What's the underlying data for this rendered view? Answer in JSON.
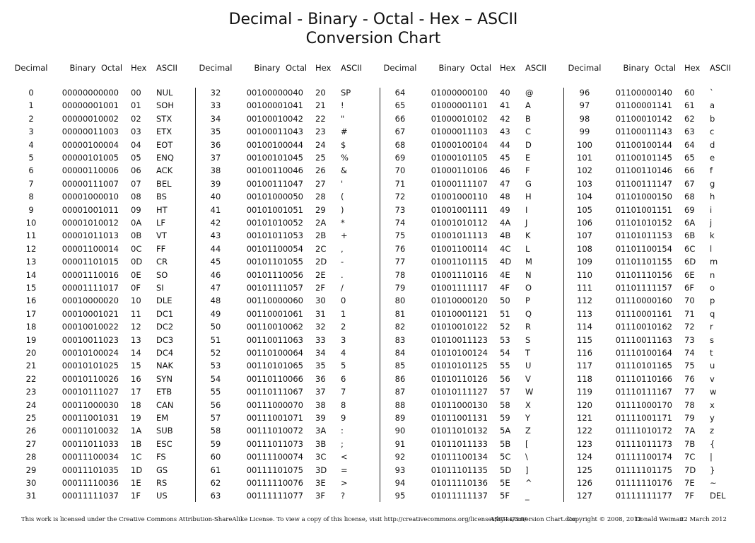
{
  "title": {
    "line1": "Decimal - Binary - Octal - Hex – ASCII",
    "line2": "Conversion Chart"
  },
  "headers": {
    "decimal": "Decimal",
    "binary": "Binary",
    "octal": "Octal",
    "hex": "Hex",
    "ascii": "ASCII"
  },
  "blocks": [
    [
      [
        "0",
        "00000000",
        "000",
        "00",
        "NUL"
      ],
      [
        "1",
        "00000001",
        "001",
        "01",
        "SOH"
      ],
      [
        "2",
        "00000010",
        "002",
        "02",
        "STX"
      ],
      [
        "3",
        "00000011",
        "003",
        "03",
        "ETX"
      ],
      [
        "4",
        "00000100",
        "004",
        "04",
        "EOT"
      ],
      [
        "5",
        "00000101",
        "005",
        "05",
        "ENQ"
      ],
      [
        "6",
        "00000110",
        "006",
        "06",
        "ACK"
      ],
      [
        "7",
        "00000111",
        "007",
        "07",
        "BEL"
      ],
      [
        "8",
        "00001000",
        "010",
        "08",
        "BS"
      ],
      [
        "9",
        "00001001",
        "011",
        "09",
        "HT"
      ],
      [
        "10",
        "00001010",
        "012",
        "0A",
        "LF"
      ],
      [
        "11",
        "00001011",
        "013",
        "0B",
        "VT"
      ],
      [
        "12",
        "00001100",
        "014",
        "0C",
        "FF"
      ],
      [
        "13",
        "00001101",
        "015",
        "0D",
        "CR"
      ],
      [
        "14",
        "00001110",
        "016",
        "0E",
        "SO"
      ],
      [
        "15",
        "00001111",
        "017",
        "0F",
        "SI"
      ],
      [
        "16",
        "00010000",
        "020",
        "10",
        "DLE"
      ],
      [
        "17",
        "00010001",
        "021",
        "11",
        "DC1"
      ],
      [
        "18",
        "00010010",
        "022",
        "12",
        "DC2"
      ],
      [
        "19",
        "00010011",
        "023",
        "13",
        "DC3"
      ],
      [
        "20",
        "00010100",
        "024",
        "14",
        "DC4"
      ],
      [
        "21",
        "00010101",
        "025",
        "15",
        "NAK"
      ],
      [
        "22",
        "00010110",
        "026",
        "16",
        "SYN"
      ],
      [
        "23",
        "00010111",
        "027",
        "17",
        "ETB"
      ],
      [
        "24",
        "00011000",
        "030",
        "18",
        "CAN"
      ],
      [
        "25",
        "00011001",
        "031",
        "19",
        "EM"
      ],
      [
        "26",
        "00011010",
        "032",
        "1A",
        "SUB"
      ],
      [
        "27",
        "00011011",
        "033",
        "1B",
        "ESC"
      ],
      [
        "28",
        "00011100",
        "034",
        "1C",
        "FS"
      ],
      [
        "29",
        "00011101",
        "035",
        "1D",
        "GS"
      ],
      [
        "30",
        "00011110",
        "036",
        "1E",
        "RS"
      ],
      [
        "31",
        "00011111",
        "037",
        "1F",
        "US"
      ]
    ],
    [
      [
        "32",
        "00100000",
        "040",
        "20",
        "SP"
      ],
      [
        "33",
        "00100001",
        "041",
        "21",
        "!"
      ],
      [
        "34",
        "00100010",
        "042",
        "22",
        "\""
      ],
      [
        "35",
        "00100011",
        "043",
        "23",
        "#"
      ],
      [
        "36",
        "00100100",
        "044",
        "24",
        "$"
      ],
      [
        "37",
        "00100101",
        "045",
        "25",
        "%"
      ],
      [
        "38",
        "00100110",
        "046",
        "26",
        "&"
      ],
      [
        "39",
        "00100111",
        "047",
        "27",
        "'"
      ],
      [
        "40",
        "00101000",
        "050",
        "28",
        "("
      ],
      [
        "41",
        "00101001",
        "051",
        "29",
        ")"
      ],
      [
        "42",
        "00101010",
        "052",
        "2A",
        "*"
      ],
      [
        "43",
        "00101011",
        "053",
        "2B",
        "+"
      ],
      [
        "44",
        "00101100",
        "054",
        "2C",
        ","
      ],
      [
        "45",
        "00101101",
        "055",
        "2D",
        "-"
      ],
      [
        "46",
        "00101110",
        "056",
        "2E",
        "."
      ],
      [
        "47",
        "00101111",
        "057",
        "2F",
        "/"
      ],
      [
        "48",
        "00110000",
        "060",
        "30",
        "0"
      ],
      [
        "49",
        "00110001",
        "061",
        "31",
        "1"
      ],
      [
        "50",
        "00110010",
        "062",
        "32",
        "2"
      ],
      [
        "51",
        "00110011",
        "063",
        "33",
        "3"
      ],
      [
        "52",
        "00110100",
        "064",
        "34",
        "4"
      ],
      [
        "53",
        "00110101",
        "065",
        "35",
        "5"
      ],
      [
        "54",
        "00110110",
        "066",
        "36",
        "6"
      ],
      [
        "55",
        "00110111",
        "067",
        "37",
        "7"
      ],
      [
        "56",
        "00111000",
        "070",
        "38",
        "8"
      ],
      [
        "57",
        "00111001",
        "071",
        "39",
        "9"
      ],
      [
        "58",
        "00111010",
        "072",
        "3A",
        ":"
      ],
      [
        "59",
        "00111011",
        "073",
        "3B",
        ";"
      ],
      [
        "60",
        "00111100",
        "074",
        "3C",
        "<"
      ],
      [
        "61",
        "00111101",
        "075",
        "3D",
        "="
      ],
      [
        "62",
        "00111110",
        "076",
        "3E",
        ">"
      ],
      [
        "63",
        "00111111",
        "077",
        "3F",
        "?"
      ]
    ],
    [
      [
        "64",
        "01000000",
        "100",
        "40",
        "@"
      ],
      [
        "65",
        "01000001",
        "101",
        "41",
        "A"
      ],
      [
        "66",
        "01000010",
        "102",
        "42",
        "B"
      ],
      [
        "67",
        "01000011",
        "103",
        "43",
        "C"
      ],
      [
        "68",
        "01000100",
        "104",
        "44",
        "D"
      ],
      [
        "69",
        "01000101",
        "105",
        "45",
        "E"
      ],
      [
        "70",
        "01000110",
        "106",
        "46",
        "F"
      ],
      [
        "71",
        "01000111",
        "107",
        "47",
        "G"
      ],
      [
        "72",
        "01001000",
        "110",
        "48",
        "H"
      ],
      [
        "73",
        "01001001",
        "111",
        "49",
        "I"
      ],
      [
        "74",
        "01001010",
        "112",
        "4A",
        "J"
      ],
      [
        "75",
        "01001011",
        "113",
        "4B",
        "K"
      ],
      [
        "76",
        "01001100",
        "114",
        "4C",
        "L"
      ],
      [
        "77",
        "01001101",
        "115",
        "4D",
        "M"
      ],
      [
        "78",
        "01001110",
        "116",
        "4E",
        "N"
      ],
      [
        "79",
        "01001111",
        "117",
        "4F",
        "O"
      ],
      [
        "80",
        "01010000",
        "120",
        "50",
        "P"
      ],
      [
        "81",
        "01010001",
        "121",
        "51",
        "Q"
      ],
      [
        "82",
        "01010010",
        "122",
        "52",
        "R"
      ],
      [
        "83",
        "01010011",
        "123",
        "53",
        "S"
      ],
      [
        "84",
        "01010100",
        "124",
        "54",
        "T"
      ],
      [
        "85",
        "01010101",
        "125",
        "55",
        "U"
      ],
      [
        "86",
        "01010110",
        "126",
        "56",
        "V"
      ],
      [
        "87",
        "01010111",
        "127",
        "57",
        "W"
      ],
      [
        "88",
        "01011000",
        "130",
        "58",
        "X"
      ],
      [
        "89",
        "01011001",
        "131",
        "59",
        "Y"
      ],
      [
        "90",
        "01011010",
        "132",
        "5A",
        "Z"
      ],
      [
        "91",
        "01011011",
        "133",
        "5B",
        "["
      ],
      [
        "92",
        "01011100",
        "134",
        "5C",
        "\\"
      ],
      [
        "93",
        "01011101",
        "135",
        "5D",
        "]"
      ],
      [
        "94",
        "01011110",
        "136",
        "5E",
        "^"
      ],
      [
        "95",
        "01011111",
        "137",
        "5F",
        "_"
      ]
    ],
    [
      [
        "96",
        "01100000",
        "140",
        "60",
        "`"
      ],
      [
        "97",
        "01100001",
        "141",
        "61",
        "a"
      ],
      [
        "98",
        "01100010",
        "142",
        "62",
        "b"
      ],
      [
        "99",
        "01100011",
        "143",
        "63",
        "c"
      ],
      [
        "100",
        "01100100",
        "144",
        "64",
        "d"
      ],
      [
        "101",
        "01100101",
        "145",
        "65",
        "e"
      ],
      [
        "102",
        "01100110",
        "146",
        "66",
        "f"
      ],
      [
        "103",
        "01100111",
        "147",
        "67",
        "g"
      ],
      [
        "104",
        "01101000",
        "150",
        "68",
        "h"
      ],
      [
        "105",
        "01101001",
        "151",
        "69",
        "i"
      ],
      [
        "106",
        "01101010",
        "152",
        "6A",
        "j"
      ],
      [
        "107",
        "01101011",
        "153",
        "6B",
        "k"
      ],
      [
        "108",
        "01101100",
        "154",
        "6C",
        "l"
      ],
      [
        "109",
        "01101101",
        "155",
        "6D",
        "m"
      ],
      [
        "110",
        "01101110",
        "156",
        "6E",
        "n"
      ],
      [
        "111",
        "01101111",
        "157",
        "6F",
        "o"
      ],
      [
        "112",
        "01110000",
        "160",
        "70",
        "p"
      ],
      [
        "113",
        "01110001",
        "161",
        "71",
        "q"
      ],
      [
        "114",
        "01110010",
        "162",
        "72",
        "r"
      ],
      [
        "115",
        "01110011",
        "163",
        "73",
        "s"
      ],
      [
        "116",
        "01110100",
        "164",
        "74",
        "t"
      ],
      [
        "117",
        "01110101",
        "165",
        "75",
        "u"
      ],
      [
        "118",
        "01110110",
        "166",
        "76",
        "v"
      ],
      [
        "119",
        "01110111",
        "167",
        "77",
        "w"
      ],
      [
        "120",
        "01111000",
        "170",
        "78",
        "x"
      ],
      [
        "121",
        "01111001",
        "171",
        "79",
        "y"
      ],
      [
        "122",
        "01111010",
        "172",
        "7A",
        "z"
      ],
      [
        "123",
        "01111011",
        "173",
        "7B",
        "{"
      ],
      [
        "124",
        "01111100",
        "174",
        "7C",
        "|"
      ],
      [
        "125",
        "01111101",
        "175",
        "7D",
        "}"
      ],
      [
        "126",
        "01111110",
        "176",
        "7E",
        "~"
      ],
      [
        "127",
        "01111111",
        "177",
        "7F",
        "DEL"
      ]
    ]
  ],
  "footer": {
    "license": "This work is licensed under the Creative Commons Attribution-ShareAlike License.  To view a copy of this license, visit  http://creativecommons.org/licenses/by-sa/3.0/",
    "file": "ASCII Conversion Chart.doc",
    "copyright": "Copyright © 2008, 2012",
    "author": "Donald Weiman",
    "date": "22 March 2012"
  }
}
